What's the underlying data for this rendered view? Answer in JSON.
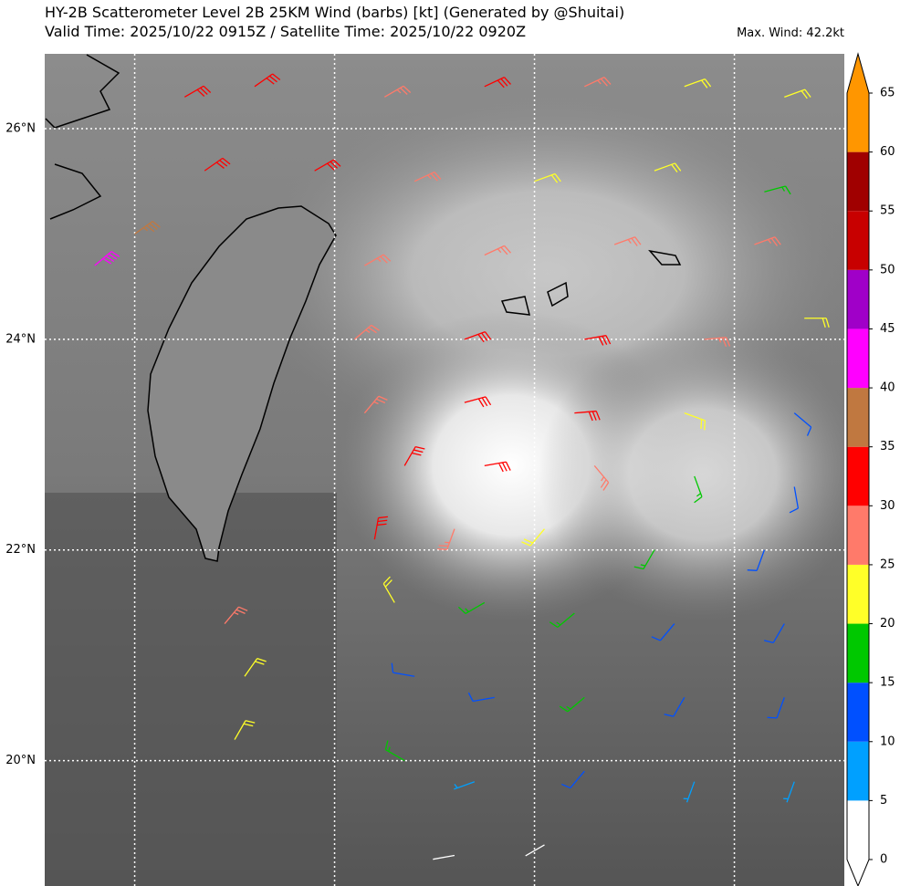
{
  "title": "HY-2B Scatterometer Level 2B 25KM Wind (barbs) [kt] (Generated by @Shuitai)",
  "subtitle": "Valid Time: 2025/10/22 0915Z / Satellite Time: 2025/10/22 0920Z",
  "max_wind": "Max. Wind: 42.2kt",
  "lat_labels": [
    {
      "value": 26,
      "label": "26°N"
    },
    {
      "value": 24,
      "label": "24°N"
    },
    {
      "value": 22,
      "label": "22°N"
    },
    {
      "value": 20,
      "label": "20°N"
    }
  ],
  "lon_gridlines": [
    120,
    122,
    124,
    126
  ],
  "lon_range": [
    119.1,
    127.1
  ],
  "lat_range": [
    18.81,
    26.71
  ],
  "colorbar": {
    "bounds": [
      0,
      5,
      10,
      15,
      20,
      25,
      30,
      35,
      40,
      45,
      50,
      55,
      60,
      65
    ],
    "colors": [
      "#ffffff",
      "#00a0ff",
      "#0050ff",
      "#00c800",
      "#ffff28",
      "#ff7a6a",
      "#ff0000",
      "#c07840",
      "#ff00ff",
      "#a000c8",
      "#c80000",
      "#a00000",
      "#ff9600"
    ],
    "extend_color": "#ff9600"
  },
  "barbs": [
    {
      "lon": 120.5,
      "lat": 26.3,
      "speed": 30,
      "direction": 60
    },
    {
      "lon": 121.2,
      "lat": 26.4,
      "speed": 32,
      "direction": 55
    },
    {
      "lon": 122.5,
      "lat": 26.3,
      "speed": 28,
      "direction": 60
    },
    {
      "lon": 123.5,
      "lat": 26.4,
      "speed": 30,
      "direction": 65
    },
    {
      "lon": 124.5,
      "lat": 26.4,
      "speed": 26,
      "direction": 65
    },
    {
      "lon": 125.5,
      "lat": 26.4,
      "speed": 22,
      "direction": 70
    },
    {
      "lon": 126.5,
      "lat": 26.3,
      "speed": 20,
      "direction": 70
    },
    {
      "lon": 120.7,
      "lat": 25.6,
      "speed": 34,
      "direction": 55
    },
    {
      "lon": 121.8,
      "lat": 25.6,
      "speed": 30,
      "direction": 60
    },
    {
      "lon": 122.8,
      "lat": 25.5,
      "speed": 27,
      "direction": 65
    },
    {
      "lon": 124.0,
      "lat": 25.5,
      "speed": 24,
      "direction": 70
    },
    {
      "lon": 125.2,
      "lat": 25.6,
      "speed": 22,
      "direction": 70
    },
    {
      "lon": 126.3,
      "lat": 25.4,
      "speed": 18,
      "direction": 75
    },
    {
      "lon": 119.6,
      "lat": 24.7,
      "speed": 42,
      "direction": 50
    },
    {
      "lon": 120.0,
      "lat": 25.0,
      "speed": 38,
      "direction": 55
    },
    {
      "lon": 122.3,
      "lat": 24.7,
      "speed": 27,
      "direction": 60
    },
    {
      "lon": 123.5,
      "lat": 24.8,
      "speed": 28,
      "direction": 65
    },
    {
      "lon": 124.8,
      "lat": 24.9,
      "speed": 27,
      "direction": 70
    },
    {
      "lon": 126.2,
      "lat": 24.9,
      "speed": 26,
      "direction": 70
    },
    {
      "lon": 122.2,
      "lat": 24.0,
      "speed": 28,
      "direction": 50
    },
    {
      "lon": 123.3,
      "lat": 24.0,
      "speed": 30,
      "direction": 70
    },
    {
      "lon": 124.5,
      "lat": 24.0,
      "speed": 32,
      "direction": 80
    },
    {
      "lon": 125.7,
      "lat": 24.0,
      "speed": 27,
      "direction": 85
    },
    {
      "lon": 126.7,
      "lat": 24.2,
      "speed": 22,
      "direction": 90
    },
    {
      "lon": 122.3,
      "lat": 23.3,
      "speed": 28,
      "direction": 40
    },
    {
      "lon": 123.3,
      "lat": 23.4,
      "speed": 33,
      "direction": 75
    },
    {
      "lon": 124.4,
      "lat": 23.3,
      "speed": 30,
      "direction": 85
    },
    {
      "lon": 125.5,
      "lat": 23.3,
      "speed": 22,
      "direction": 110
    },
    {
      "lon": 126.6,
      "lat": 23.3,
      "speed": 14,
      "direction": 130
    },
    {
      "lon": 122.7,
      "lat": 22.8,
      "speed": 34,
      "direction": 30
    },
    {
      "lon": 123.5,
      "lat": 22.8,
      "speed": 34,
      "direction": 80
    },
    {
      "lon": 124.6,
      "lat": 22.8,
      "speed": 25,
      "direction": 140
    },
    {
      "lon": 125.6,
      "lat": 22.7,
      "speed": 16,
      "direction": 160
    },
    {
      "lon": 126.6,
      "lat": 22.6,
      "speed": 12,
      "direction": 170
    },
    {
      "lon": 122.4,
      "lat": 22.1,
      "speed": 33,
      "direction": 10
    },
    {
      "lon": 123.2,
      "lat": 22.2,
      "speed": 26,
      "direction": 200
    },
    {
      "lon": 124.1,
      "lat": 22.2,
      "speed": 20,
      "direction": 220
    },
    {
      "lon": 125.2,
      "lat": 22.0,
      "speed": 16,
      "direction": 210
    },
    {
      "lon": 126.3,
      "lat": 22.0,
      "speed": 12,
      "direction": 200
    },
    {
      "lon": 122.6,
      "lat": 21.5,
      "speed": 22,
      "direction": 330
    },
    {
      "lon": 123.5,
      "lat": 21.5,
      "speed": 16,
      "direction": 240
    },
    {
      "lon": 124.4,
      "lat": 21.4,
      "speed": 18,
      "direction": 230
    },
    {
      "lon": 125.4,
      "lat": 21.3,
      "speed": 13,
      "direction": 220
    },
    {
      "lon": 126.5,
      "lat": 21.3,
      "speed": 11,
      "direction": 210
    },
    {
      "lon": 122.8,
      "lat": 20.8,
      "speed": 14,
      "direction": 280
    },
    {
      "lon": 123.6,
      "lat": 20.6,
      "speed": 12,
      "direction": 260
    },
    {
      "lon": 124.5,
      "lat": 20.6,
      "speed": 16,
      "direction": 230
    },
    {
      "lon": 125.5,
      "lat": 20.6,
      "speed": 12,
      "direction": 210
    },
    {
      "lon": 126.5,
      "lat": 20.6,
      "speed": 10,
      "direction": 200
    },
    {
      "lon": 122.7,
      "lat": 20.0,
      "speed": 18,
      "direction": 300
    },
    {
      "lon": 123.4,
      "lat": 19.8,
      "speed": 9,
      "direction": 250
    },
    {
      "lon": 124.5,
      "lat": 19.9,
      "speed": 12,
      "direction": 220
    },
    {
      "lon": 125.6,
      "lat": 19.8,
      "speed": 9,
      "direction": 200
    },
    {
      "lon": 126.6,
      "lat": 19.8,
      "speed": 8,
      "direction": 200
    },
    {
      "lon": 123.2,
      "lat": 19.1,
      "speed": 4,
      "direction": 260
    },
    {
      "lon": 124.1,
      "lat": 19.2,
      "speed": 4,
      "direction": 240
    },
    {
      "lon": 120.9,
      "lat": 21.3,
      "speed": 28,
      "direction": 40
    },
    {
      "lon": 121.1,
      "lat": 20.8,
      "speed": 24,
      "direction": 35
    },
    {
      "lon": 121.0,
      "lat": 20.2,
      "speed": 23,
      "direction": 30
    }
  ]
}
